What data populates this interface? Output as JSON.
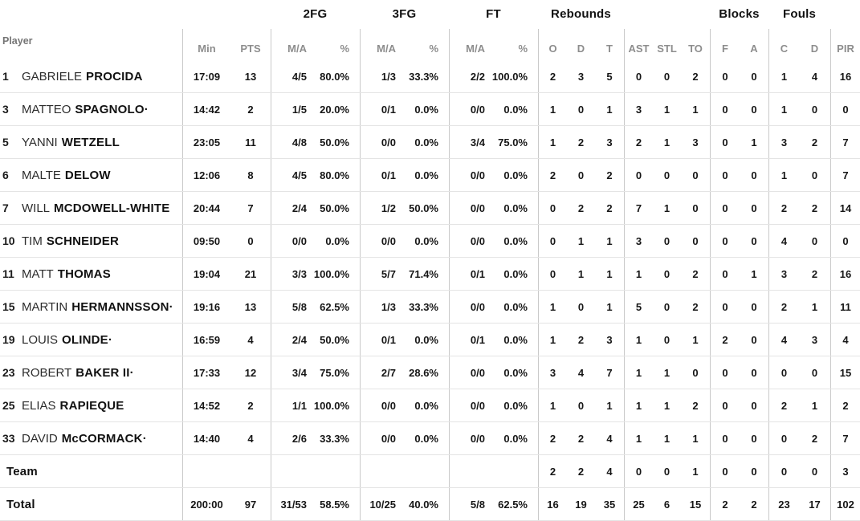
{
  "colors": {
    "text_dark": "#161616",
    "header_gray": "#8d8d8d",
    "row_divider": "#e4e4e4",
    "column_divider": "#c9c9c9",
    "background": "#ffffff"
  },
  "table": {
    "player_col_header": "Player",
    "groups": [
      {
        "label": "2FG"
      },
      {
        "label": "3FG"
      },
      {
        "label": "FT"
      },
      {
        "label": "Rebounds"
      },
      {
        "label": "Blocks"
      },
      {
        "label": "Fouls"
      }
    ],
    "sub_headers": [
      "Min",
      "PTS",
      "M/A",
      "%",
      "M/A",
      "%",
      "M/A",
      "%",
      "O",
      "D",
      "T",
      "AST",
      "STL",
      "TO",
      "F",
      "A",
      "C",
      "D",
      "PIR"
    ],
    "rows": [
      {
        "num": "1",
        "first": "GABRIELE",
        "last": "PROCIDA",
        "cells": [
          "17:09",
          "13",
          "4/5",
          "80.0%",
          "1/3",
          "33.3%",
          "2/2",
          "100.0%",
          "2",
          "3",
          "5",
          "0",
          "0",
          "2",
          "0",
          "0",
          "1",
          "4",
          "16"
        ]
      },
      {
        "num": "3",
        "first": "MATTEO",
        "last": "SPAGNOLO·",
        "cells": [
          "14:42",
          "2",
          "1/5",
          "20.0%",
          "0/1",
          "0.0%",
          "0/0",
          "0.0%",
          "1",
          "0",
          "1",
          "3",
          "1",
          "1",
          "0",
          "0",
          "1",
          "0",
          "0"
        ]
      },
      {
        "num": "5",
        "first": "YANNI",
        "last": "WETZELL",
        "cells": [
          "23:05",
          "11",
          "4/8",
          "50.0%",
          "0/0",
          "0.0%",
          "3/4",
          "75.0%",
          "1",
          "2",
          "3",
          "2",
          "1",
          "3",
          "0",
          "1",
          "3",
          "2",
          "7"
        ]
      },
      {
        "num": "6",
        "first": "MALTE",
        "last": "DELOW",
        "cells": [
          "12:06",
          "8",
          "4/5",
          "80.0%",
          "0/1",
          "0.0%",
          "0/0",
          "0.0%",
          "2",
          "0",
          "2",
          "0",
          "0",
          "0",
          "0",
          "0",
          "1",
          "0",
          "7"
        ]
      },
      {
        "num": "7",
        "first": "WILL",
        "last": "MCDOWELL-WHITE",
        "cells": [
          "20:44",
          "7",
          "2/4",
          "50.0%",
          "1/2",
          "50.0%",
          "0/0",
          "0.0%",
          "0",
          "2",
          "2",
          "7",
          "1",
          "0",
          "0",
          "0",
          "2",
          "2",
          "14"
        ]
      },
      {
        "num": "10",
        "first": "TIM",
        "last": "SCHNEIDER",
        "cells": [
          "09:50",
          "0",
          "0/0",
          "0.0%",
          "0/0",
          "0.0%",
          "0/0",
          "0.0%",
          "0",
          "1",
          "1",
          "3",
          "0",
          "0",
          "0",
          "0",
          "4",
          "0",
          "0"
        ]
      },
      {
        "num": "11",
        "first": "MATT",
        "last": "THOMAS",
        "cells": [
          "19:04",
          "21",
          "3/3",
          "100.0%",
          "5/7",
          "71.4%",
          "0/1",
          "0.0%",
          "0",
          "1",
          "1",
          "1",
          "0",
          "2",
          "0",
          "1",
          "3",
          "2",
          "16"
        ]
      },
      {
        "num": "15",
        "first": "MARTIN",
        "last": "HERMANNSSON·",
        "cells": [
          "19:16",
          "13",
          "5/8",
          "62.5%",
          "1/3",
          "33.3%",
          "0/0",
          "0.0%",
          "1",
          "0",
          "1",
          "5",
          "0",
          "2",
          "0",
          "0",
          "2",
          "1",
          "11"
        ]
      },
      {
        "num": "19",
        "first": "LOUIS",
        "last": "OLINDE·",
        "cells": [
          "16:59",
          "4",
          "2/4",
          "50.0%",
          "0/1",
          "0.0%",
          "0/1",
          "0.0%",
          "1",
          "2",
          "3",
          "1",
          "0",
          "1",
          "2",
          "0",
          "4",
          "3",
          "4"
        ]
      },
      {
        "num": "23",
        "first": "ROBERT",
        "last": "BAKER II·",
        "cells": [
          "17:33",
          "12",
          "3/4",
          "75.0%",
          "2/7",
          "28.6%",
          "0/0",
          "0.0%",
          "3",
          "4",
          "7",
          "1",
          "1",
          "0",
          "0",
          "0",
          "0",
          "0",
          "15"
        ]
      },
      {
        "num": "25",
        "first": "ELIAS",
        "last": "RAPIEQUE",
        "cells": [
          "14:52",
          "2",
          "1/1",
          "100.0%",
          "0/0",
          "0.0%",
          "0/0",
          "0.0%",
          "1",
          "0",
          "1",
          "1",
          "1",
          "2",
          "0",
          "0",
          "2",
          "1",
          "2"
        ]
      },
      {
        "num": "33",
        "first": "DAVID",
        "last": "McCORMACK·",
        "cells": [
          "14:40",
          "4",
          "2/6",
          "33.3%",
          "0/0",
          "0.0%",
          "0/0",
          "0.0%",
          "2",
          "2",
          "4",
          "1",
          "1",
          "1",
          "0",
          "0",
          "0",
          "2",
          "7"
        ]
      },
      {
        "num": "",
        "first": "",
        "last": "Team",
        "cells": [
          "",
          "",
          "",
          "",
          "",
          "",
          "",
          "",
          "2",
          "2",
          "4",
          "0",
          "0",
          "1",
          "0",
          "0",
          "0",
          "0",
          "3"
        ]
      },
      {
        "num": "",
        "first": "",
        "last": "Total",
        "cells": [
          "200:00",
          "97",
          "31/53",
          "58.5%",
          "10/25",
          "40.0%",
          "5/8",
          "62.5%",
          "16",
          "19",
          "35",
          "25",
          "6",
          "15",
          "2",
          "2",
          "23",
          "17",
          "102"
        ]
      }
    ]
  }
}
